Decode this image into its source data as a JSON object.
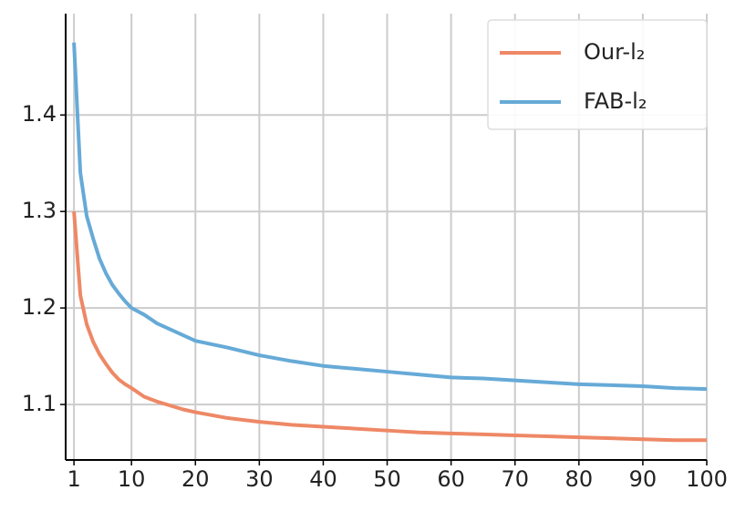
{
  "chart_data": {
    "type": "line",
    "x": [
      1,
      2,
      3,
      4,
      5,
      6,
      7,
      8,
      9,
      10,
      12,
      14,
      16,
      18,
      20,
      25,
      30,
      35,
      40,
      45,
      50,
      55,
      60,
      65,
      70,
      75,
      80,
      85,
      90,
      95,
      100
    ],
    "series": [
      {
        "name": "Our-l₂",
        "color": "#ee8866",
        "values": [
          1.3,
          1.213,
          1.183,
          1.165,
          1.152,
          1.142,
          1.133,
          1.126,
          1.121,
          1.117,
          1.108,
          1.103,
          1.099,
          1.095,
          1.092,
          1.086,
          1.082,
          1.079,
          1.077,
          1.075,
          1.073,
          1.071,
          1.07,
          1.069,
          1.068,
          1.067,
          1.066,
          1.065,
          1.064,
          1.063,
          1.063
        ]
      },
      {
        "name": "FAB-l₂",
        "color": "#66aad7",
        "values": [
          1.475,
          1.34,
          1.295,
          1.272,
          1.251,
          1.236,
          1.224,
          1.215,
          1.207,
          1.2,
          1.193,
          1.184,
          1.178,
          1.172,
          1.166,
          1.159,
          1.151,
          1.145,
          1.14,
          1.137,
          1.134,
          1.131,
          1.128,
          1.127,
          1.125,
          1.123,
          1.121,
          1.12,
          1.119,
          1.117,
          1.116
        ]
      }
    ],
    "xlim": [
      -0.3,
      100
    ],
    "xticks": [
      1,
      10,
      20,
      30,
      40,
      50,
      60,
      70,
      80,
      90,
      100
    ],
    "ylim": [
      1.0425,
      1.505
    ],
    "yticks": [
      1.1,
      1.2,
      1.3,
      1.4
    ],
    "grid": true,
    "legend": "upper right"
  }
}
